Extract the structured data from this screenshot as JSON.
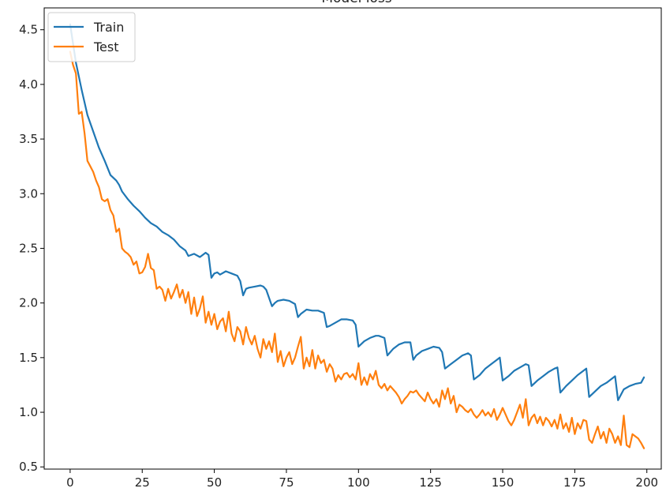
{
  "chart_data": {
    "type": "line",
    "title": "Model loss",
    "xlabel": "",
    "ylabel": "",
    "xlim": [
      -9,
      205
    ],
    "ylim": [
      0.48,
      4.7
    ],
    "x_ticks": [
      0,
      25,
      50,
      75,
      100,
      125,
      150,
      175,
      200
    ],
    "y_ticks": [
      0.5,
      1.0,
      1.5,
      2.0,
      2.5,
      3.0,
      3.5,
      4.0,
      4.5
    ],
    "y_tick_labels": [
      "0.5",
      "1.0",
      "1.5",
      "2.0",
      "2.5",
      "3.0",
      "3.5",
      "4.0",
      "4.5"
    ],
    "grid": false,
    "legend_position": "upper-left",
    "series": [
      {
        "name": "Train",
        "color": "#1f77b4",
        "points": [
          [
            0,
            4.55
          ],
          [
            2,
            4.2
          ],
          [
            4,
            3.95
          ],
          [
            6,
            3.72
          ],
          [
            8,
            3.57
          ],
          [
            10,
            3.42
          ],
          [
            12,
            3.3
          ],
          [
            14,
            3.17
          ],
          [
            16,
            3.12
          ],
          [
            17,
            3.08
          ],
          [
            18,
            3.02
          ],
          [
            20,
            2.95
          ],
          [
            22,
            2.89
          ],
          [
            24,
            2.84
          ],
          [
            26,
            2.78
          ],
          [
            28,
            2.73
          ],
          [
            30,
            2.7
          ],
          [
            32,
            2.65
          ],
          [
            34,
            2.62
          ],
          [
            36,
            2.58
          ],
          [
            38,
            2.52
          ],
          [
            40,
            2.48
          ],
          [
            41,
            2.43
          ],
          [
            43,
            2.45
          ],
          [
            45,
            2.42
          ],
          [
            47,
            2.46
          ],
          [
            48,
            2.44
          ],
          [
            49,
            2.23
          ],
          [
            50,
            2.27
          ],
          [
            51,
            2.28
          ],
          [
            52,
            2.26
          ],
          [
            54,
            2.29
          ],
          [
            56,
            2.27
          ],
          [
            58,
            2.25
          ],
          [
            59,
            2.2
          ],
          [
            60,
            2.07
          ],
          [
            61,
            2.13
          ],
          [
            62,
            2.14
          ],
          [
            64,
            2.15
          ],
          [
            66,
            2.16
          ],
          [
            67,
            2.15
          ],
          [
            68,
            2.12
          ],
          [
            70,
            1.97
          ],
          [
            71,
            2.0
          ],
          [
            72,
            2.02
          ],
          [
            74,
            2.03
          ],
          [
            76,
            2.02
          ],
          [
            78,
            1.99
          ],
          [
            79,
            1.87
          ],
          [
            80,
            1.9
          ],
          [
            82,
            1.94
          ],
          [
            84,
            1.93
          ],
          [
            86,
            1.93
          ],
          [
            88,
            1.91
          ],
          [
            89,
            1.78
          ],
          [
            90,
            1.79
          ],
          [
            92,
            1.82
          ],
          [
            94,
            1.85
          ],
          [
            96,
            1.85
          ],
          [
            98,
            1.84
          ],
          [
            99,
            1.8
          ],
          [
            100,
            1.6
          ],
          [
            102,
            1.65
          ],
          [
            104,
            1.68
          ],
          [
            106,
            1.7
          ],
          [
            107,
            1.7
          ],
          [
            109,
            1.68
          ],
          [
            110,
            1.52
          ],
          [
            112,
            1.58
          ],
          [
            114,
            1.62
          ],
          [
            116,
            1.64
          ],
          [
            118,
            1.64
          ],
          [
            119,
            1.48
          ],
          [
            120,
            1.52
          ],
          [
            122,
            1.56
          ],
          [
            124,
            1.58
          ],
          [
            126,
            1.6
          ],
          [
            128,
            1.59
          ],
          [
            129,
            1.55
          ],
          [
            130,
            1.4
          ],
          [
            132,
            1.44
          ],
          [
            134,
            1.48
          ],
          [
            136,
            1.52
          ],
          [
            138,
            1.54
          ],
          [
            139,
            1.52
          ],
          [
            140,
            1.3
          ],
          [
            142,
            1.34
          ],
          [
            144,
            1.4
          ],
          [
            146,
            1.44
          ],
          [
            148,
            1.48
          ],
          [
            149,
            1.5
          ],
          [
            150,
            1.29
          ],
          [
            152,
            1.33
          ],
          [
            154,
            1.38
          ],
          [
            156,
            1.41
          ],
          [
            158,
            1.44
          ],
          [
            159,
            1.43
          ],
          [
            160,
            1.24
          ],
          [
            162,
            1.29
          ],
          [
            164,
            1.33
          ],
          [
            166,
            1.37
          ],
          [
            168,
            1.4
          ],
          [
            169,
            1.41
          ],
          [
            170,
            1.18
          ],
          [
            172,
            1.24
          ],
          [
            174,
            1.29
          ],
          [
            176,
            1.34
          ],
          [
            178,
            1.38
          ],
          [
            179,
            1.4
          ],
          [
            180,
            1.14
          ],
          [
            182,
            1.19
          ],
          [
            184,
            1.24
          ],
          [
            186,
            1.27
          ],
          [
            188,
            1.31
          ],
          [
            189,
            1.33
          ],
          [
            190,
            1.11
          ],
          [
            192,
            1.21
          ],
          [
            194,
            1.24
          ],
          [
            196,
            1.26
          ],
          [
            198,
            1.27
          ],
          [
            199,
            1.32
          ]
        ]
      },
      {
        "name": "Test",
        "color": "#ff7f0e",
        "points": [
          [
            0,
            4.3
          ],
          [
            1,
            4.18
          ],
          [
            2,
            4.1
          ],
          [
            3,
            3.73
          ],
          [
            4,
            3.75
          ],
          [
            5,
            3.55
          ],
          [
            6,
            3.3
          ],
          [
            7,
            3.25
          ],
          [
            8,
            3.2
          ],
          [
            9,
            3.12
          ],
          [
            10,
            3.06
          ],
          [
            11,
            2.95
          ],
          [
            12,
            2.93
          ],
          [
            13,
            2.95
          ],
          [
            14,
            2.85
          ],
          [
            15,
            2.8
          ],
          [
            16,
            2.65
          ],
          [
            17,
            2.68
          ],
          [
            18,
            2.5
          ],
          [
            19,
            2.47
          ],
          [
            20,
            2.45
          ],
          [
            21,
            2.42
          ],
          [
            22,
            2.35
          ],
          [
            23,
            2.38
          ],
          [
            24,
            2.27
          ],
          [
            25,
            2.28
          ],
          [
            26,
            2.33
          ],
          [
            27,
            2.45
          ],
          [
            28,
            2.32
          ],
          [
            29,
            2.3
          ],
          [
            30,
            2.13
          ],
          [
            31,
            2.15
          ],
          [
            32,
            2.12
          ],
          [
            33,
            2.02
          ],
          [
            34,
            2.13
          ],
          [
            35,
            2.04
          ],
          [
            36,
            2.1
          ],
          [
            37,
            2.17
          ],
          [
            38,
            2.05
          ],
          [
            39,
            2.12
          ],
          [
            40,
            2.0
          ],
          [
            41,
            2.1
          ],
          [
            42,
            1.9
          ],
          [
            43,
            2.05
          ],
          [
            44,
            1.88
          ],
          [
            45,
            1.95
          ],
          [
            46,
            2.06
          ],
          [
            47,
            1.82
          ],
          [
            48,
            1.92
          ],
          [
            49,
            1.8
          ],
          [
            50,
            1.9
          ],
          [
            51,
            1.76
          ],
          [
            52,
            1.83
          ],
          [
            53,
            1.86
          ],
          [
            54,
            1.74
          ],
          [
            55,
            1.92
          ],
          [
            56,
            1.72
          ],
          [
            57,
            1.65
          ],
          [
            58,
            1.78
          ],
          [
            59,
            1.74
          ],
          [
            60,
            1.62
          ],
          [
            61,
            1.78
          ],
          [
            62,
            1.68
          ],
          [
            63,
            1.62
          ],
          [
            64,
            1.7
          ],
          [
            65,
            1.58
          ],
          [
            66,
            1.5
          ],
          [
            67,
            1.67
          ],
          [
            68,
            1.58
          ],
          [
            69,
            1.65
          ],
          [
            70,
            1.55
          ],
          [
            71,
            1.72
          ],
          [
            72,
            1.46
          ],
          [
            73,
            1.56
          ],
          [
            74,
            1.42
          ],
          [
            75,
            1.5
          ],
          [
            76,
            1.55
          ],
          [
            77,
            1.44
          ],
          [
            78,
            1.5
          ],
          [
            79,
            1.6
          ],
          [
            80,
            1.69
          ],
          [
            81,
            1.4
          ],
          [
            82,
            1.5
          ],
          [
            83,
            1.42
          ],
          [
            84,
            1.57
          ],
          [
            85,
            1.4
          ],
          [
            86,
            1.52
          ],
          [
            87,
            1.45
          ],
          [
            88,
            1.48
          ],
          [
            89,
            1.37
          ],
          [
            90,
            1.44
          ],
          [
            91,
            1.4
          ],
          [
            92,
            1.28
          ],
          [
            93,
            1.34
          ],
          [
            94,
            1.3
          ],
          [
            95,
            1.35
          ],
          [
            96,
            1.36
          ],
          [
            97,
            1.32
          ],
          [
            98,
            1.35
          ],
          [
            99,
            1.3
          ],
          [
            100,
            1.45
          ],
          [
            101,
            1.25
          ],
          [
            102,
            1.32
          ],
          [
            103,
            1.25
          ],
          [
            104,
            1.35
          ],
          [
            105,
            1.3
          ],
          [
            106,
            1.38
          ],
          [
            107,
            1.25
          ],
          [
            108,
            1.22
          ],
          [
            109,
            1.26
          ],
          [
            110,
            1.2
          ],
          [
            111,
            1.24
          ],
          [
            112,
            1.21
          ],
          [
            113,
            1.18
          ],
          [
            114,
            1.14
          ],
          [
            115,
            1.08
          ],
          [
            116,
            1.12
          ],
          [
            117,
            1.15
          ],
          [
            118,
            1.19
          ],
          [
            119,
            1.18
          ],
          [
            120,
            1.2
          ],
          [
            121,
            1.16
          ],
          [
            122,
            1.13
          ],
          [
            123,
            1.1
          ],
          [
            124,
            1.18
          ],
          [
            125,
            1.12
          ],
          [
            126,
            1.08
          ],
          [
            127,
            1.12
          ],
          [
            128,
            1.05
          ],
          [
            129,
            1.2
          ],
          [
            130,
            1.12
          ],
          [
            131,
            1.22
          ],
          [
            132,
            1.08
          ],
          [
            133,
            1.15
          ],
          [
            134,
            1.0
          ],
          [
            135,
            1.07
          ],
          [
            136,
            1.05
          ],
          [
            137,
            1.02
          ],
          [
            138,
            1.0
          ],
          [
            139,
            1.03
          ],
          [
            140,
            0.98
          ],
          [
            141,
            0.95
          ],
          [
            142,
            0.98
          ],
          [
            143,
            1.02
          ],
          [
            144,
            0.97
          ],
          [
            145,
            1.0
          ],
          [
            146,
            0.96
          ],
          [
            147,
            1.03
          ],
          [
            148,
            0.93
          ],
          [
            149,
            0.98
          ],
          [
            150,
            1.04
          ],
          [
            151,
            0.98
          ],
          [
            152,
            0.92
          ],
          [
            153,
            0.88
          ],
          [
            154,
            0.93
          ],
          [
            155,
            1.0
          ],
          [
            156,
            1.07
          ],
          [
            157,
            0.95
          ],
          [
            158,
            1.12
          ],
          [
            159,
            0.88
          ],
          [
            160,
            0.95
          ],
          [
            161,
            0.98
          ],
          [
            162,
            0.9
          ],
          [
            163,
            0.96
          ],
          [
            164,
            0.88
          ],
          [
            165,
            0.95
          ],
          [
            166,
            0.92
          ],
          [
            167,
            0.87
          ],
          [
            168,
            0.93
          ],
          [
            169,
            0.85
          ],
          [
            170,
            0.98
          ],
          [
            171,
            0.85
          ],
          [
            172,
            0.9
          ],
          [
            173,
            0.82
          ],
          [
            174,
            0.95
          ],
          [
            175,
            0.8
          ],
          [
            176,
            0.9
          ],
          [
            177,
            0.85
          ],
          [
            178,
            0.93
          ],
          [
            179,
            0.92
          ],
          [
            180,
            0.75
          ],
          [
            181,
            0.72
          ],
          [
            182,
            0.8
          ],
          [
            183,
            0.87
          ],
          [
            184,
            0.76
          ],
          [
            185,
            0.82
          ],
          [
            186,
            0.72
          ],
          [
            187,
            0.85
          ],
          [
            188,
            0.8
          ],
          [
            189,
            0.72
          ],
          [
            190,
            0.78
          ],
          [
            191,
            0.7
          ],
          [
            192,
            0.97
          ],
          [
            193,
            0.7
          ],
          [
            194,
            0.68
          ],
          [
            195,
            0.8
          ],
          [
            196,
            0.78
          ],
          [
            197,
            0.76
          ],
          [
            198,
            0.72
          ],
          [
            199,
            0.67
          ]
        ]
      }
    ]
  }
}
